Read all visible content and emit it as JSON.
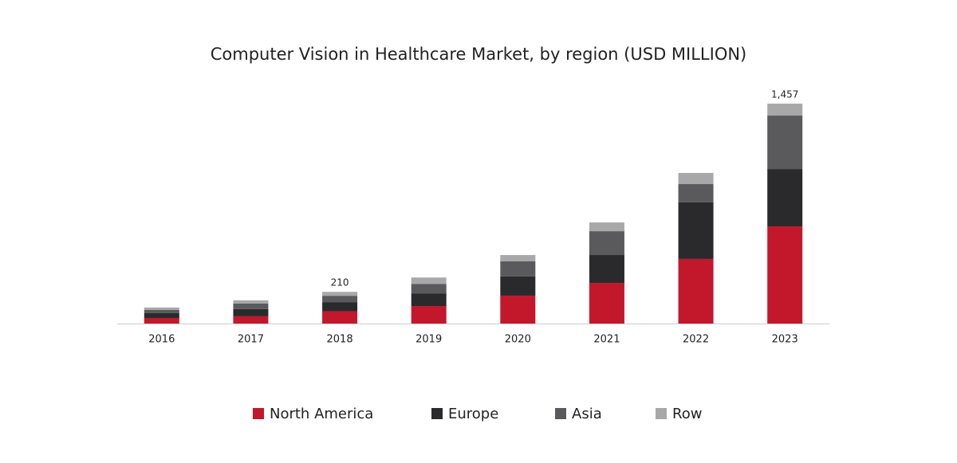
{
  "chart_data": {
    "type": "stacked_bar",
    "title": "Computer Vision in Healthcare Market, by region (USD MILLION)",
    "categories": [
      "2016",
      "2017",
      "2018",
      "2019",
      "2020",
      "2021",
      "2022",
      "2023"
    ],
    "series": [
      {
        "name": "North America",
        "color": "#c3172b",
        "values": [
          37,
          48,
          82,
          116,
          185,
          269,
          428,
          644
        ]
      },
      {
        "name": "Europe",
        "color": "#2a2a2d",
        "values": [
          32,
          48,
          60,
          84,
          127,
          185,
          375,
          380
        ]
      },
      {
        "name": "Asia",
        "color": "#5a5a5c",
        "values": [
          21,
          37,
          42,
          63,
          100,
          158,
          121,
          354
        ]
      },
      {
        "name": "Row",
        "color": "#a8a8a8",
        "values": [
          16,
          21,
          26,
          42,
          42,
          58,
          74,
          79
        ]
      }
    ],
    "total_labels": [
      null,
      null,
      "210",
      null,
      null,
      null,
      null,
      "1,457"
    ],
    "ylim": [
      0,
      1600
    ],
    "legend": "bottom"
  }
}
